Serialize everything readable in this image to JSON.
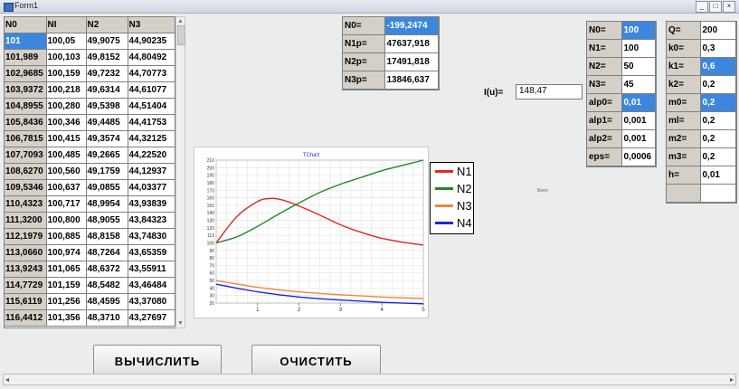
{
  "window": {
    "title": "Form1",
    "min_label": "_",
    "max_label": "□",
    "close_label": "×"
  },
  "grid": {
    "headers": [
      "N0",
      "NI",
      "N2",
      "N3"
    ],
    "rows": [
      [
        "101",
        "100,05",
        "49,9075",
        "44,90235"
      ],
      [
        "101,989",
        "100,103",
        "49,8152",
        "44,80492"
      ],
      [
        "102,9685",
        "100,159",
        "49,7232",
        "44,70773"
      ],
      [
        "103,9372",
        "100,218",
        "49,6314",
        "44,61077"
      ],
      [
        "104,8955",
        "100,280",
        "49,5398",
        "44,51404"
      ],
      [
        "105,8436",
        "100,346",
        "49,4485",
        "44,41753"
      ],
      [
        "106,7815",
        "100,415",
        "49,3574",
        "44,32125"
      ],
      [
        "107,7093",
        "100,485",
        "49,2665",
        "44,22520"
      ],
      [
        "108,6270",
        "100,560",
        "49,1759",
        "44,12937"
      ],
      [
        "109,5346",
        "100,637",
        "49,0855",
        "44,03377"
      ],
      [
        "110,4323",
        "100,717",
        "48,9954",
        "43,93839"
      ],
      [
        "111,3200",
        "100,800",
        "48,9055",
        "43,84323"
      ],
      [
        "112,1979",
        "100,885",
        "48,8158",
        "43,74830"
      ],
      [
        "113,0660",
        "100,974",
        "48,7264",
        "43,65359"
      ],
      [
        "113,9243",
        "101,065",
        "48,6372",
        "43,55911"
      ],
      [
        "114,7729",
        "101,159",
        "48,5482",
        "43,46484"
      ],
      [
        "115,6119",
        "101,256",
        "48,4595",
        "43,37080"
      ],
      [
        "116,4412",
        "101,356",
        "48,3710",
        "43,27697"
      ]
    ]
  },
  "results": [
    {
      "label": "N0=",
      "value": "-199,2474"
    },
    {
      "label": "N1p=",
      "value": "47637,918"
    },
    {
      "label": "N2p=",
      "value": "17491,818"
    },
    {
      "label": "N3p=",
      "value": "13846,637"
    }
  ],
  "iu": {
    "label": "I(u)=",
    "value": "148,47"
  },
  "params_n": [
    {
      "label": "N0=",
      "value": "100"
    },
    {
      "label": "N1=",
      "value": "100"
    },
    {
      "label": "N2=",
      "value": "50"
    },
    {
      "label": "N3=",
      "value": "45"
    }
  ],
  "params_alp": [
    {
      "label": "alp0=",
      "value": "0,01"
    },
    {
      "label": "alp1=",
      "value": "0,001"
    },
    {
      "label": "alp2=",
      "value": "0,001"
    },
    {
      "label": "eps=",
      "value": "0,0006"
    }
  ],
  "params_q": [
    {
      "label": "Q=",
      "value": "200"
    },
    {
      "label": "k0=",
      "value": "0,3"
    },
    {
      "label": "k1=",
      "value": "0,6"
    },
    {
      "label": "k2=",
      "value": "0,2"
    }
  ],
  "params_m": [
    {
      "label": "m0=",
      "value": "0,2"
    },
    {
      "label": "ml=",
      "value": "0,2"
    },
    {
      "label": "m2=",
      "value": "0,2"
    },
    {
      "label": "m3=",
      "value": "0,2"
    },
    {
      "label": "h=",
      "value": "0,01"
    }
  ],
  "small_text": "Been",
  "buttons": {
    "compute": "ВЫЧИСЛИТЬ",
    "clear": "ОЧИСТИТЬ"
  },
  "chart_data": {
    "type": "line",
    "title": "TChart",
    "xlim": [
      0,
      5
    ],
    "ylim": [
      20,
      210
    ],
    "x_ticks": [
      "1",
      "2",
      "3",
      "4",
      "5"
    ],
    "y_ticks": [
      "20",
      "30",
      "40",
      "50",
      "60",
      "70",
      "80",
      "90",
      "100",
      "110",
      "120",
      "130",
      "140",
      "150",
      "160",
      "170",
      "180",
      "190",
      "200",
      "210"
    ],
    "grid": true,
    "legend_position": "right",
    "series": [
      {
        "name": "N1",
        "color": "#e32626",
        "x": [
          0,
          0.5,
          1.0,
          1.3,
          1.6,
          2.0,
          2.5,
          3.0,
          3.5,
          4.0,
          4.5,
          5.0
        ],
        "y": [
          100,
          135,
          155,
          159,
          157,
          149,
          137,
          124,
          114,
          106,
          101,
          97
        ]
      },
      {
        "name": "N2",
        "color": "#1d8a24",
        "x": [
          0,
          0.5,
          1.0,
          1.5,
          2.0,
          2.5,
          3.0,
          3.5,
          4.0,
          4.5,
          5.0
        ],
        "y": [
          100,
          108,
          122,
          138,
          153,
          167,
          178,
          187,
          196,
          203,
          210
        ]
      },
      {
        "name": "N3",
        "color": "#f0873a",
        "x": [
          0,
          1,
          2,
          3,
          4,
          5
        ],
        "y": [
          50,
          41,
          35,
          31,
          28,
          26
        ]
      },
      {
        "name": "N4",
        "color": "#1b24e0",
        "x": [
          0,
          1,
          2,
          3,
          4,
          5
        ],
        "y": [
          45,
          35,
          28,
          24,
          21,
          19
        ]
      }
    ]
  }
}
